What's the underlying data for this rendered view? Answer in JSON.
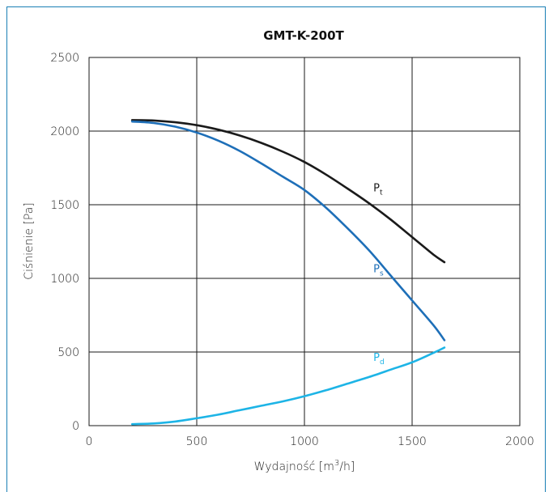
{
  "chart_data": {
    "type": "line",
    "title": "GMT-K-200T",
    "xlabel": "Wydajność [m3/h]",
    "xlabel_parts": {
      "pre": "Wydajność [m",
      "sup": "3",
      "post": "/h]"
    },
    "ylabel": "Ciśnienie [Pa]",
    "xlim": [
      0,
      2000
    ],
    "ylim": [
      0,
      2500
    ],
    "xticks": [
      "0",
      "500",
      "1000",
      "1500",
      "2000"
    ],
    "yticks": [
      "0",
      "500",
      "1000",
      "1500",
      "2000",
      "2500"
    ],
    "grid": true,
    "series": [
      {
        "name": "Pt",
        "label_main": "P",
        "label_sub": "t",
        "color": "#1a1a1a",
        "x": [
          200,
          300,
          400,
          500,
          600,
          700,
          800,
          900,
          1000,
          1100,
          1200,
          1300,
          1400,
          1500,
          1600,
          1650
        ],
        "y": [
          2075,
          2072,
          2060,
          2040,
          2010,
          1970,
          1920,
          1860,
          1790,
          1705,
          1610,
          1510,
          1400,
          1280,
          1160,
          1110
        ]
      },
      {
        "name": "Ps",
        "label_main": "P",
        "label_sub": "s",
        "color": "#1e6fb8",
        "x": [
          200,
          300,
          400,
          500,
          600,
          700,
          800,
          900,
          1000,
          1100,
          1200,
          1300,
          1400,
          1500,
          1600,
          1650
        ],
        "y": [
          2065,
          2055,
          2030,
          1990,
          1935,
          1865,
          1780,
          1690,
          1600,
          1480,
          1340,
          1190,
          1020,
          850,
          680,
          580
        ]
      },
      {
        "name": "Pd",
        "label_main": "P",
        "label_sub": "d",
        "color": "#1db4e6",
        "x": [
          200,
          300,
          400,
          500,
          600,
          700,
          800,
          900,
          1000,
          1100,
          1200,
          1300,
          1400,
          1500,
          1600,
          1650
        ],
        "y": [
          10,
          15,
          28,
          50,
          75,
          105,
          135,
          165,
          200,
          240,
          285,
          330,
          380,
          430,
          495,
          530
        ]
      }
    ],
    "series_label_positions": [
      {
        "x": 1320,
        "y": 1590
      },
      {
        "x": 1320,
        "y": 1040
      },
      {
        "x": 1320,
        "y": 440
      }
    ]
  }
}
